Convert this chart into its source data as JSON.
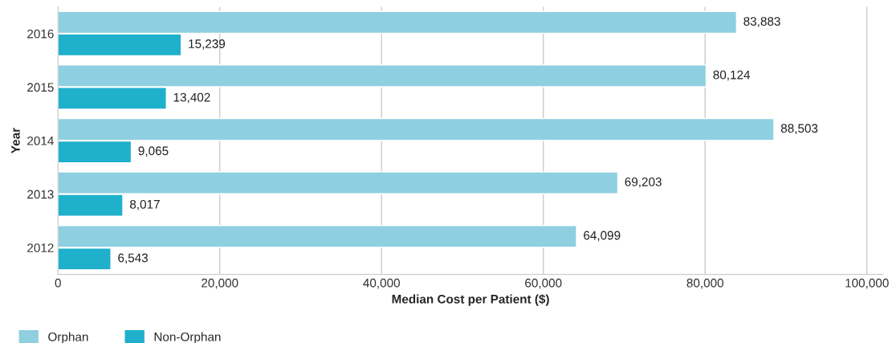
{
  "chart_data": {
    "type": "bar",
    "orientation": "horizontal",
    "xlabel": "Median Cost per Patient ($)",
    "ylabel": "Year",
    "categories": [
      "2016",
      "2015",
      "2014",
      "2013",
      "2012"
    ],
    "series": [
      {
        "name": "Orphan",
        "color": "#8ecfe0",
        "values": [
          83883,
          80124,
          88503,
          69203,
          64099
        ],
        "value_labels": [
          "83,883",
          "80,124",
          "88,503",
          "69,203",
          "64,099"
        ]
      },
      {
        "name": "Non-Orphan",
        "color": "#1fb0cc",
        "values": [
          15239,
          13402,
          9065,
          8017,
          6543
        ],
        "value_labels": [
          "15,239",
          "13,402",
          "9,065",
          "8,017",
          "6,543"
        ]
      }
    ],
    "xlim": [
      0,
      102000
    ],
    "xticks": [
      {
        "value": 0,
        "label": "0"
      },
      {
        "value": 20000,
        "label": "20,000"
      },
      {
        "value": 40000,
        "label": "40,000"
      },
      {
        "value": 60000,
        "label": "60,000"
      },
      {
        "value": 80000,
        "label": "80,000"
      },
      {
        "value": 100000,
        "label": "100,000"
      }
    ],
    "grid": "x",
    "legend": "bottom left"
  }
}
